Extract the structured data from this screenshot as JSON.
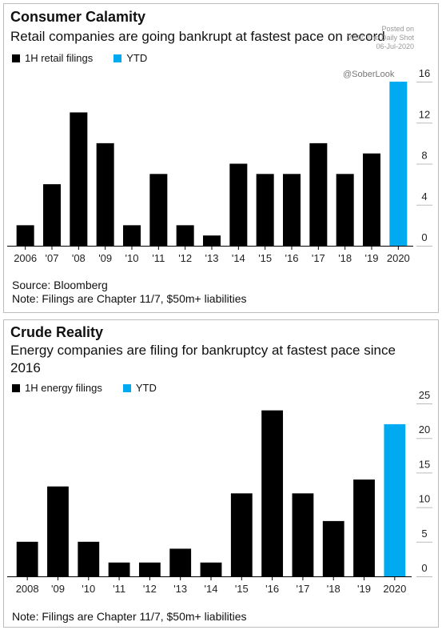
{
  "charts": [
    {
      "title": "Consumer Calamity",
      "subtitle": "Retail companies are going bankrupt at fastest pace on record",
      "legend": [
        {
          "label": "1H retail filings",
          "color": "#000000"
        },
        {
          "label": "YTD",
          "color": "#00aaf0"
        }
      ],
      "source": "Source: Bloomberg",
      "note": "Note: Filings are Chapter 11/7, $50m+ liabilities",
      "watermark": {
        "line1": "Posted on",
        "line2": "WSJ: The Daily Shot",
        "line3": "06-Jul-2020",
        "handle": "@SoberLook"
      }
    },
    {
      "title": "Crude Reality",
      "subtitle": "Energy companies are filing for bankruptcy at fastest pace since 2016",
      "legend": [
        {
          "label": "1H energy filings",
          "color": "#000000"
        },
        {
          "label": "YTD",
          "color": "#00aaf0"
        }
      ],
      "note": "Note: Filings are Chapter 11/7, $50m+ liabilities"
    }
  ],
  "chart_data": [
    {
      "type": "bar",
      "title": "Consumer Calamity",
      "subtitle": "Retail companies are going bankrupt at fastest pace on record",
      "categories": [
        "2006",
        "'07",
        "'08",
        "'09",
        "'10",
        "'11",
        "'12",
        "'13",
        "'14",
        "'15",
        "'16",
        "'17",
        "'18",
        "'19",
        "2020"
      ],
      "series": [
        {
          "name": "1H retail filings",
          "color": "#000000",
          "values": [
            2,
            6,
            13,
            10,
            2,
            7,
            2,
            1,
            8,
            7,
            7,
            10,
            7,
            9,
            null
          ]
        },
        {
          "name": "YTD",
          "color": "#00aaf0",
          "values": [
            null,
            null,
            null,
            null,
            null,
            null,
            null,
            null,
            null,
            null,
            null,
            null,
            null,
            null,
            16
          ]
        }
      ],
      "yticks": [
        0,
        4,
        8,
        12,
        16
      ],
      "ylim": [
        0,
        16
      ],
      "y_axis_side": "right",
      "legend_position": "top-left",
      "grid": false
    },
    {
      "type": "bar",
      "title": "Crude Reality",
      "subtitle": "Energy companies are filing for bankruptcy at fastest pace since 2016",
      "categories": [
        "2008",
        "'09",
        "'10",
        "'11",
        "'12",
        "'13",
        "'14",
        "'15",
        "'16",
        "'17",
        "'18",
        "'19",
        "2020"
      ],
      "series": [
        {
          "name": "1H energy filings",
          "color": "#000000",
          "values": [
            5,
            13,
            5,
            2,
            2,
            4,
            2,
            12,
            24,
            12,
            8,
            14,
            null
          ]
        },
        {
          "name": "YTD",
          "color": "#00aaf0",
          "values": [
            null,
            null,
            null,
            null,
            null,
            null,
            null,
            null,
            null,
            null,
            null,
            null,
            22
          ]
        }
      ],
      "yticks": [
        0,
        5,
        10,
        15,
        20,
        25
      ],
      "ylim": [
        0,
        25
      ],
      "y_axis_side": "right",
      "legend_position": "top-left",
      "grid": false
    }
  ]
}
